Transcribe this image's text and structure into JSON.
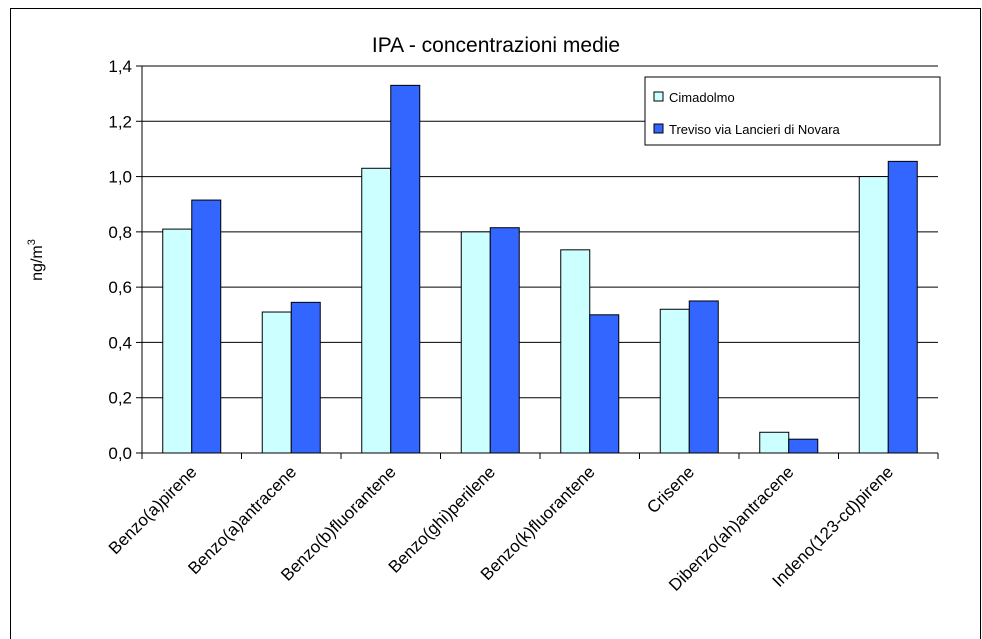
{
  "chart_data": {
    "type": "bar",
    "title": "IPA - concentrazioni medie",
    "y_label": "ng/m",
    "y_label_superscript": "3",
    "categories": [
      "Benzo(a)pirene",
      "Benzo(a)antracene",
      "Benzo(b)fluorantene",
      "Benzo(ghi)perilene",
      "Benzo(k)fluorantene",
      "Crisene",
      "Dibenzo(ah)antracene",
      "Indeno(123-cd)pirene"
    ],
    "series": [
      {
        "name": "Cimadolmo",
        "color": "#ccffff",
        "values": [
          0.81,
          0.51,
          1.03,
          0.8,
          0.735,
          0.52,
          0.075,
          1.0
        ]
      },
      {
        "name": "Treviso via Lancieri di Novara",
        "color": "#3366ff",
        "values": [
          0.915,
          0.545,
          1.33,
          0.815,
          0.5,
          0.55,
          0.05,
          1.055
        ]
      }
    ],
    "ylim": [
      0,
      1.4
    ],
    "yticks": [
      {
        "value": 0,
        "label": "0,0"
      },
      {
        "value": 0.2,
        "label": "0,2"
      },
      {
        "value": 0.4,
        "label": "0,4"
      },
      {
        "value": 0.6,
        "label": "0,6"
      },
      {
        "value": 0.8,
        "label": "0,8"
      },
      {
        "value": 1.0,
        "label": "1,0"
      },
      {
        "value": 1.2,
        "label": "1,2"
      },
      {
        "value": 1.4,
        "label": "1,4"
      }
    ],
    "grid": true,
    "legend": "top-right"
  }
}
